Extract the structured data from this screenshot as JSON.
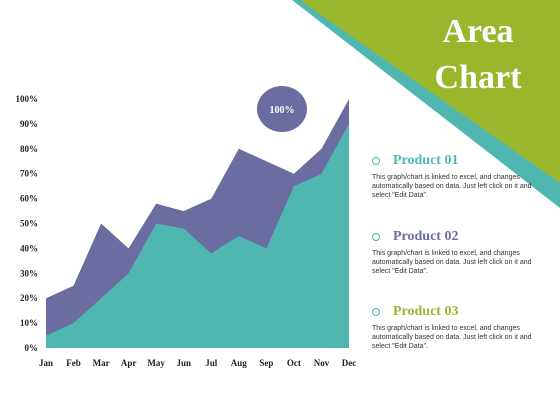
{
  "header": {
    "title_line1": "Area",
    "title_line2": "Chart"
  },
  "colors": {
    "banner": "#9ab62d",
    "banner_edge": "#4fb7b0",
    "series_back": "#6b6ca0",
    "series_front": "#4fb7b0",
    "badge": "#6b6ca0"
  },
  "badge": {
    "label": "100%"
  },
  "legend": [
    {
      "name": "Product 01",
      "color": "#4fb7b0",
      "description": "This graph/chart is linked to excel, and changes automatically based on data. Just left click on it and select \"Edit Data\"."
    },
    {
      "name": "Product 02",
      "color": "#6b6ca0",
      "description": "This graph/chart is linked to excel, and changes automatically based on data. Just left click on it and select \"Edit Data\"."
    },
    {
      "name": "Product 03",
      "color": "#9ab62d",
      "description": "This graph/chart is linked to excel, and changes automatically based on data. Just left click on it and select \"Edit Data\"."
    }
  ],
  "chart_data": {
    "type": "area",
    "categories": [
      "Jan",
      "Feb",
      "Mar",
      "Apr",
      "May",
      "Jun",
      "Jul",
      "Aug",
      "Sep",
      "Oct",
      "Nov",
      "Dec"
    ],
    "yticks": [
      "0%",
      "10%",
      "20%",
      "30%",
      "40%",
      "50%",
      "60%",
      "70%",
      "80%",
      "90%",
      "100%"
    ],
    "ylim": [
      0,
      100
    ],
    "series": [
      {
        "values": [
          20,
          25,
          50,
          40,
          58,
          55,
          60,
          80,
          75,
          70,
          80,
          100
        ]
      },
      {
        "values": [
          5,
          10,
          20,
          30,
          50,
          48,
          38,
          45,
          40,
          65,
          70,
          90
        ]
      }
    ],
    "grid": false,
    "legend_position": "right"
  }
}
